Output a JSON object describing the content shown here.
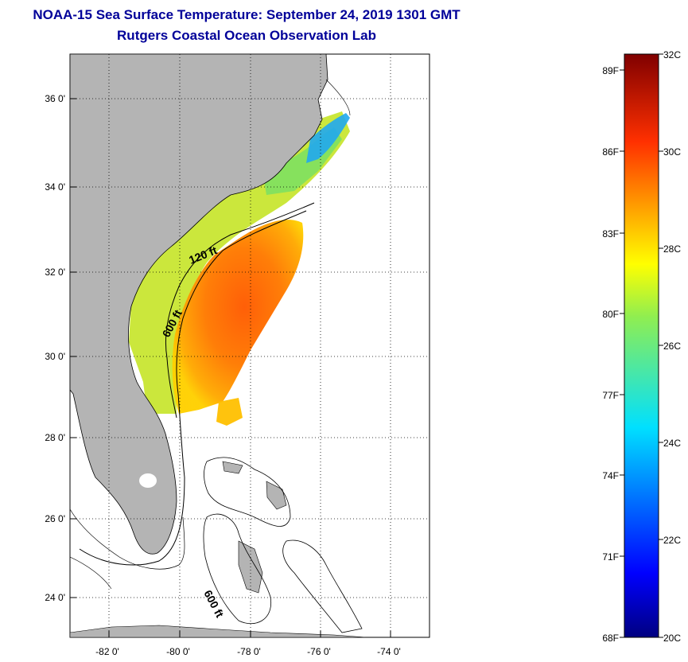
{
  "title_line1": "NOAA-15 Sea Surface Temperature:  September 24, 2019 1301 GMT",
  "title_line2": "Rutgers Coastal Ocean Observation Lab",
  "map": {
    "lat_labels": [
      "36 0'",
      "34 0'",
      "32 0'",
      "30 0'",
      "28 0'",
      "26 0'",
      "24 0'"
    ],
    "lon_labels": [
      "-82 0'",
      "-80 0'",
      "-78 0'",
      "-76 0'",
      "-74 0'"
    ],
    "contour_labels": [
      "120 ft",
      "600 ft",
      "600 ft"
    ]
  },
  "colorbar": {
    "f_labels": [
      "89F",
      "86F",
      "83F",
      "80F",
      "77F",
      "74F",
      "71F",
      "68F"
    ],
    "c_labels": [
      "32C",
      "30C",
      "28C",
      "26C",
      "24C",
      "22C",
      "20C"
    ]
  },
  "colors": {
    "title": "#000099",
    "land": "#b4b4b4",
    "scale_warm": "#800000",
    "scale_cold": "#000080"
  }
}
